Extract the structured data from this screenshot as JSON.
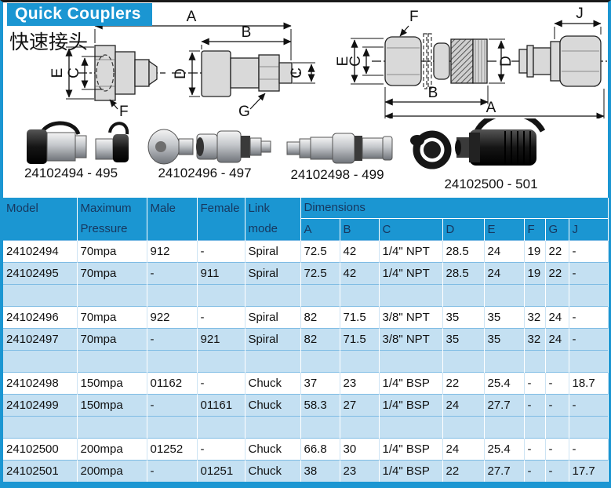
{
  "page": {
    "title": "Quick Couplers",
    "subtitle_cn": "快速接头"
  },
  "colors": {
    "accent_blue": "#1B96D2",
    "row_alt_blue": "#C4E0F2",
    "header_text": "#17375E"
  },
  "diagrams": {
    "view1": {
      "dim_a": "A",
      "dim_e": "E",
      "dim_c": "C",
      "leader_f": "F"
    },
    "view2": {
      "dim_b": "B",
      "dim_d": "D",
      "dim_c": "C",
      "leader_g": "G"
    },
    "view3": {
      "leader_f": "F",
      "dim_e": "E",
      "dim_c": "C",
      "dim_d": "D",
      "dim_b": "B",
      "dim_a": "A"
    },
    "view4": {
      "dim_j": "J"
    }
  },
  "photos": [
    {
      "caption": "24102494 - 495"
    },
    {
      "caption": "24102496 - 497"
    },
    {
      "caption": "24102498 - 499"
    },
    {
      "caption": "24102500 - 501"
    }
  ],
  "table": {
    "headers": {
      "model": "Model",
      "maximum": "Maximum",
      "pressure": "Pressure",
      "male": "Male",
      "female": "Female",
      "link": "Link",
      "mode": "mode",
      "dimensions": "Dimensions",
      "dim_cols": [
        "A",
        "B",
        "C",
        "D",
        "E",
        "F",
        "G",
        "J"
      ]
    },
    "rows": [
      {
        "shade": "white",
        "cells": [
          "24102494",
          "70mpa",
          "912",
          "-",
          "Spiral",
          "72.5",
          "42",
          "1/4\" NPT",
          "28.5",
          "24",
          "19",
          "22",
          "-"
        ]
      },
      {
        "shade": "light",
        "cells": [
          "24102495",
          "70mpa",
          "-",
          "911",
          "Spiral",
          "72.5",
          "42",
          "1/4\" NPT",
          "28.5",
          "24",
          "19",
          "22",
          "-"
        ]
      },
      {
        "shade": "light",
        "cells": []
      },
      {
        "shade": "white",
        "cells": [
          "24102496",
          "70mpa",
          "922",
          "-",
          "Spiral",
          "82",
          "71.5",
          "3/8\" NPT",
          "35",
          "35",
          "32",
          "24",
          "-"
        ]
      },
      {
        "shade": "light",
        "cells": [
          "24102497",
          "70mpa",
          "-",
          "921",
          "Spiral",
          "82",
          "71.5",
          "3/8\" NPT",
          "35",
          "35",
          "32",
          "24",
          "-"
        ]
      },
      {
        "shade": "light",
        "cells": []
      },
      {
        "shade": "white",
        "cells": [
          "24102498",
          "150mpa",
          "01162",
          "-",
          "Chuck",
          "37",
          "23",
          "1/4\" BSP",
          "22",
          "25.4",
          "-",
          "-",
          "18.7"
        ]
      },
      {
        "shade": "light",
        "cells": [
          "24102499",
          "150mpa",
          "-",
          "01161",
          "Chuck",
          "58.3",
          "27",
          "1/4\" BSP",
          "24",
          "27.7",
          "-",
          "-",
          "-"
        ]
      },
      {
        "shade": "light",
        "cells": []
      },
      {
        "shade": "white",
        "cells": [
          "24102500",
          "200mpa",
          "01252",
          "-",
          "Chuck",
          "66.8",
          "30",
          "1/4\" BSP",
          "24",
          "25.4",
          "-",
          "-",
          "-"
        ]
      },
      {
        "shade": "light",
        "cells": [
          "24102501",
          "200mpa",
          "-",
          "01251",
          "Chuck",
          "38",
          "23",
          "1/4\" BSP",
          "22",
          "27.7",
          "-",
          "-",
          "17.7"
        ]
      }
    ]
  }
}
